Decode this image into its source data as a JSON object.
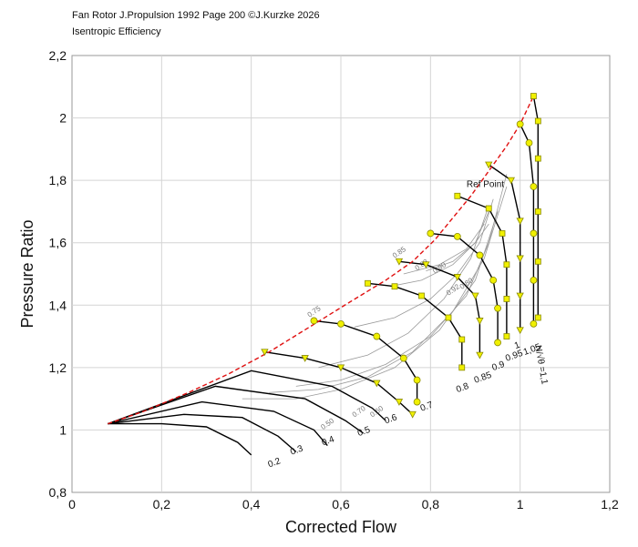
{
  "header": {
    "line1": "Fan Rotor J.Propulsion 1992 Page 200 ©J.Kurzke 2026",
    "line2": "Isentropic Efficiency"
  },
  "chart_data": {
    "type": "line",
    "title": "Fan Rotor J.Propulsion 1992 Page 200 ©J.Kurzke 2026",
    "subtitle": "Isentropic Efficiency",
    "xlabel": "Corrected Flow",
    "ylabel": "Pressure Ratio",
    "xlim": [
      0,
      1.2
    ],
    "ylim": [
      0.8,
      2.2
    ],
    "xticks": [
      0,
      0.2,
      0.4,
      0.6,
      0.8,
      1,
      1.2
    ],
    "xtick_labels": [
      "0",
      "0,2",
      "0,4",
      "0,6",
      "0,8",
      "1",
      "1,2"
    ],
    "yticks": [
      0.8,
      1,
      1.2,
      1.4,
      1.6,
      1.8,
      2,
      2.2
    ],
    "ytick_labels": [
      "0,8",
      "1",
      "1,2",
      "1,4",
      "1,6",
      "1,8",
      "2",
      "2,2"
    ],
    "grid": true,
    "colors": {
      "speed_line": "#000000",
      "surge_line": "#e01010",
      "efficiency": "#9a9a9a",
      "marker_fill": "#f0f000",
      "marker_edge": "#8a8a00"
    },
    "surge_line": {
      "x": [
        0.08,
        0.16,
        0.26,
        0.35,
        0.44,
        0.53,
        0.62,
        0.7,
        0.76,
        0.81,
        0.85,
        0.89,
        0.93,
        0.97,
        1.0,
        1.03
      ],
      "y": [
        1.02,
        1.06,
        1.12,
        1.18,
        1.25,
        1.33,
        1.41,
        1.48,
        1.54,
        1.61,
        1.68,
        1.75,
        1.83,
        1.91,
        1.98,
        2.07
      ]
    },
    "speed_lines": [
      {
        "label": "0.2",
        "x": [
          0.08,
          0.2,
          0.3,
          0.37,
          0.4
        ],
        "y": [
          1.02,
          1.02,
          1.01,
          0.96,
          0.92
        ]
      },
      {
        "label": "0.3",
        "x": [
          0.08,
          0.25,
          0.38,
          0.46,
          0.5
        ],
        "y": [
          1.02,
          1.05,
          1.04,
          0.98,
          0.93
        ]
      },
      {
        "label": "0.4",
        "x": [
          0.08,
          0.29,
          0.45,
          0.54,
          0.57
        ],
        "y": [
          1.02,
          1.09,
          1.06,
          1.0,
          0.95
        ]
      },
      {
        "label": "0.5",
        "x": [
          0.08,
          0.32,
          0.52,
          0.61,
          0.65
        ],
        "y": [
          1.02,
          1.14,
          1.1,
          1.03,
          0.99
        ]
      },
      {
        "label": "0.6",
        "x": [
          0.08,
          0.4,
          0.58,
          0.67,
          0.7
        ],
        "y": [
          1.02,
          1.19,
          1.14,
          1.07,
          1.03
        ]
      },
      {
        "label": "0.7",
        "x": [
          0.43,
          0.52,
          0.6,
          0.68,
          0.73,
          0.76
        ],
        "y": [
          1.25,
          1.23,
          1.2,
          1.15,
          1.09,
          1.05
        ]
      },
      {
        "label": "0.8",
        "x": [
          0.54,
          0.6,
          0.68,
          0.74,
          0.77,
          0.77
        ],
        "y": [
          1.35,
          1.34,
          1.3,
          1.23,
          1.16,
          1.09
        ]
      },
      {
        "label": "0.85",
        "x": [
          0.66,
          0.72,
          0.78,
          0.84,
          0.87,
          0.87
        ],
        "y": [
          1.47,
          1.46,
          1.43,
          1.36,
          1.29,
          1.2
        ]
      },
      {
        "label": "0.9",
        "x": [
          0.73,
          0.79,
          0.86,
          0.9,
          0.91,
          0.91
        ],
        "y": [
          1.54,
          1.53,
          1.49,
          1.43,
          1.35,
          1.24
        ]
      },
      {
        "label": "0.95",
        "x": [
          0.8,
          0.86,
          0.91,
          0.94,
          0.95,
          0.95
        ],
        "y": [
          1.63,
          1.62,
          1.56,
          1.48,
          1.39,
          1.28
        ]
      },
      {
        "label": "1",
        "x": [
          0.86,
          0.93,
          0.96,
          0.97,
          0.97,
          0.97
        ],
        "y": [
          1.75,
          1.71,
          1.63,
          1.53,
          1.42,
          1.3
        ]
      },
      {
        "label": "1.05",
        "x": [
          0.93,
          0.98,
          1.0,
          1.0,
          1.0,
          1.0
        ],
        "y": [
          1.85,
          1.8,
          1.67,
          1.55,
          1.43,
          1.32
        ]
      },
      {
        "label": "1.1",
        "x": [
          1.0,
          1.02,
          1.03,
          1.03,
          1.03,
          1.03
        ],
        "y": [
          1.98,
          1.92,
          1.78,
          1.63,
          1.48,
          1.34
        ]
      },
      {
        "label": "",
        "x": [
          1.03,
          1.04,
          1.04,
          1.04,
          1.04,
          1.04
        ],
        "y": [
          2.07,
          1.99,
          1.87,
          1.7,
          1.54,
          1.36
        ]
      }
    ],
    "efficiency_contours": [
      {
        "label": "0.50",
        "x": [
          0.38,
          0.5,
          0.6,
          0.72,
          0.82,
          0.9,
          0.95
        ],
        "y": [
          1.1,
          1.1,
          1.13,
          1.2,
          1.32,
          1.48,
          1.7
        ]
      },
      {
        "label": "0.60",
        "x": [
          0.44,
          0.55,
          0.66,
          0.76,
          0.85,
          0.92,
          0.97
        ],
        "y": [
          1.12,
          1.13,
          1.17,
          1.25,
          1.38,
          1.55,
          1.78
        ]
      },
      {
        "label": "0.70",
        "x": [
          0.5,
          0.6,
          0.7,
          0.8,
          0.88,
          0.93,
          0.97
        ],
        "y": [
          1.14,
          1.16,
          1.21,
          1.3,
          1.43,
          1.6,
          1.82
        ]
      },
      {
        "label": "0.80",
        "x": [
          0.55,
          0.66,
          0.75,
          0.83,
          0.89,
          0.93
        ],
        "y": [
          1.2,
          1.24,
          1.31,
          1.42,
          1.55,
          1.72
        ]
      },
      {
        "label": "0.85",
        "x": [
          0.63,
          0.72,
          0.8,
          0.86,
          0.91,
          0.94
        ],
        "y": [
          1.33,
          1.36,
          1.42,
          1.5,
          1.6,
          1.74
        ]
      },
      {
        "label": "0.88",
        "x": [
          0.71,
          0.78,
          0.85,
          0.9,
          0.93
        ],
        "y": [
          1.46,
          1.48,
          1.53,
          1.6,
          1.7
        ]
      },
      {
        "label": "0.90",
        "x": [
          0.74,
          0.82,
          0.88,
          0.92
        ],
        "y": [
          1.5,
          1.53,
          1.58,
          1.66
        ]
      },
      {
        "label": "0.92",
        "x": [
          0.79,
          0.85,
          0.9,
          0.93
        ],
        "y": [
          1.51,
          1.54,
          1.6,
          1.66
        ]
      }
    ],
    "efficiency_labels": [
      {
        "text": "0.50",
        "x": 0.56,
        "y": 1.0
      },
      {
        "text": "0.60",
        "x": 0.67,
        "y": 1.04
      },
      {
        "text": "0.70",
        "x": 0.63,
        "y": 1.04
      },
      {
        "text": "0.85",
        "x": 0.72,
        "y": 1.55
      },
      {
        "text": "0.88",
        "x": 0.77,
        "y": 1.51
      },
      {
        "text": "0.90",
        "x": 0.81,
        "y": 1.5
      },
      {
        "text": "0.92",
        "x": 0.84,
        "y": 1.43
      },
      {
        "text": "0.75",
        "x": 0.53,
        "y": 1.36
      },
      {
        "text": "0.80",
        "x": 0.87,
        "y": 1.45
      }
    ],
    "ref_point": {
      "label": "Ref Point",
      "x": 0.97,
      "y": 1.79
    },
    "speed_param_label": "N/√θ =1,1",
    "speed_tick_labels": [
      {
        "text": "0.2",
        "x": 0.44,
        "y": 0.88
      },
      {
        "text": "0.3",
        "x": 0.49,
        "y": 0.92
      },
      {
        "text": "0.4",
        "x": 0.56,
        "y": 0.95
      },
      {
        "text": "0.5",
        "x": 0.64,
        "y": 0.98
      },
      {
        "text": "0.6",
        "x": 0.7,
        "y": 1.02
      },
      {
        "text": "0.7",
        "x": 0.78,
        "y": 1.06
      },
      {
        "text": "0.8",
        "x": 0.86,
        "y": 1.12
      },
      {
        "text": "0.85",
        "x": 0.9,
        "y": 1.15
      },
      {
        "text": "0.9",
        "x": 0.94,
        "y": 1.19
      },
      {
        "text": "0.95",
        "x": 0.97,
        "y": 1.22
      },
      {
        "text": "1",
        "x": 0.99,
        "y": 1.26
      },
      {
        "text": "1,05",
        "x": 1.01,
        "y": 1.24
      }
    ]
  }
}
